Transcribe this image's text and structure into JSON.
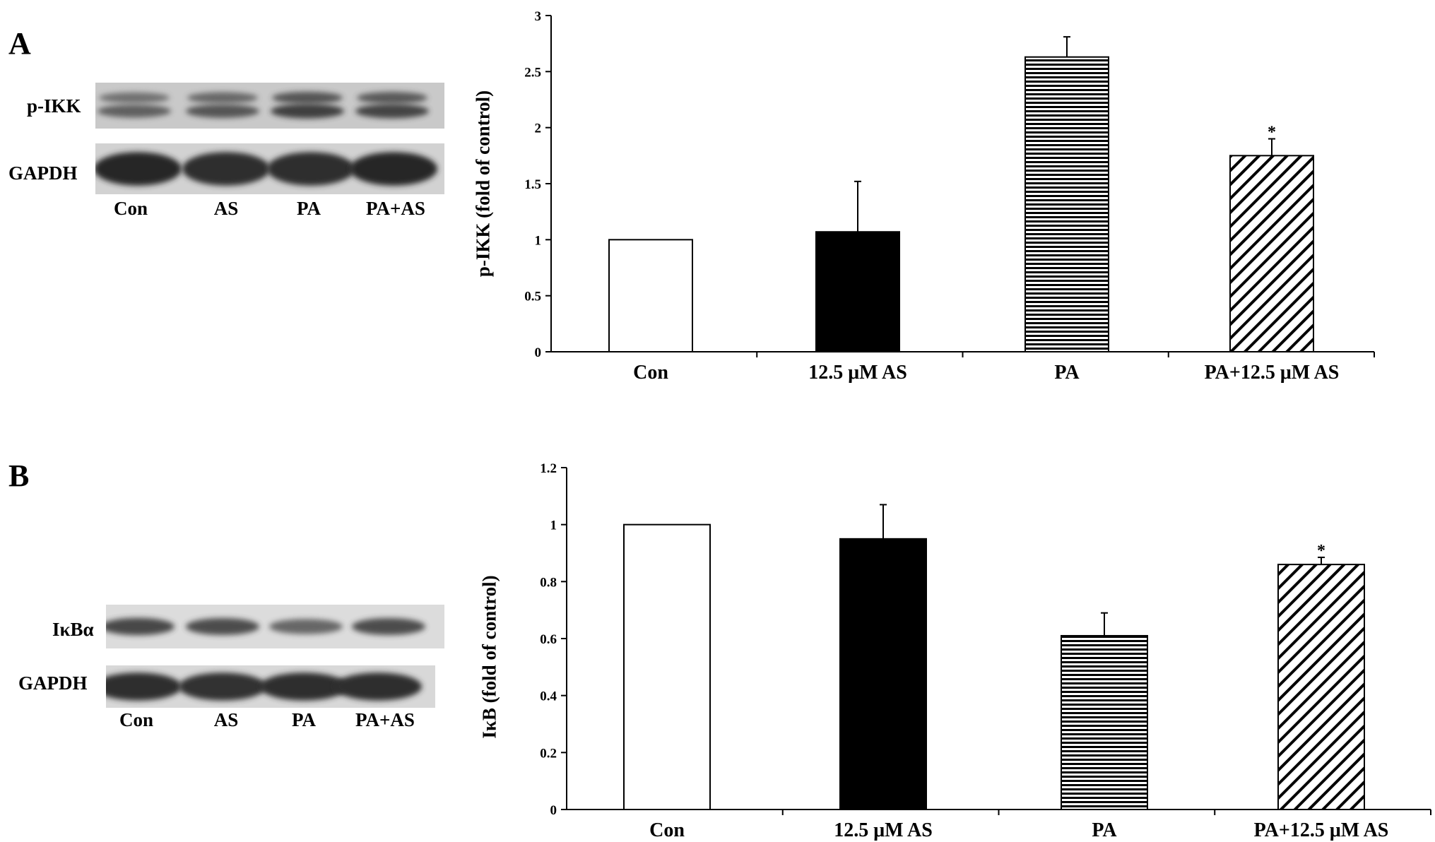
{
  "panels": [
    {
      "letter": "A",
      "blots": [
        {
          "label": "p-IKK",
          "type": "double",
          "intensities": [
            0.55,
            0.65,
            0.85,
            0.8
          ]
        },
        {
          "label": "GAPDH",
          "type": "thick",
          "intensities": [
            1.0,
            0.95,
            0.95,
            1.0
          ]
        }
      ],
      "lanes": [
        "Con",
        "AS",
        "PA",
        "PA+AS"
      ]
    },
    {
      "letter": "B",
      "blots": [
        {
          "label": "IκBα",
          "type": "single",
          "intensities": [
            0.85,
            0.8,
            0.55,
            0.8
          ]
        },
        {
          "label": "GAPDH",
          "type": "thick",
          "intensities": [
            0.95,
            0.9,
            0.95,
            0.95
          ]
        }
      ],
      "lanes": [
        "Con",
        "AS",
        "PA",
        "PA+AS"
      ]
    }
  ],
  "chart_data": [
    {
      "type": "bar",
      "categories": [
        "Con",
        "12.5 μM AS",
        "PA",
        "PA+12.5 μM AS"
      ],
      "values": [
        1.0,
        1.07,
        2.63,
        1.75
      ],
      "errors": [
        0,
        0.45,
        0.18,
        0.15
      ],
      "significance": [
        "",
        "",
        "",
        "*"
      ],
      "fills": [
        "white",
        "black",
        "horizontal-stripes",
        "diagonal-stripes"
      ],
      "ylabel": "p-IKK (fold of control)",
      "ylim": [
        0,
        3
      ],
      "yticks": [
        "0",
        "0.5",
        "1",
        "1.5",
        "2",
        "2.5",
        "3"
      ]
    },
    {
      "type": "bar",
      "categories": [
        "Con",
        "12.5 μM AS",
        "PA",
        "PA+12.5 μM AS"
      ],
      "values": [
        1.0,
        0.95,
        0.61,
        0.86
      ],
      "errors": [
        0,
        0.12,
        0.08,
        0.025
      ],
      "significance": [
        "",
        "",
        "",
        "*"
      ],
      "fills": [
        "white",
        "black",
        "horizontal-stripes",
        "diagonal-stripes"
      ],
      "ylabel": "IκB (fold of control)",
      "ylim": [
        0,
        1.2
      ],
      "yticks": [
        "0",
        "0.2",
        "0.4",
        "0.6",
        "0.8",
        "1",
        "1.2"
      ]
    }
  ]
}
